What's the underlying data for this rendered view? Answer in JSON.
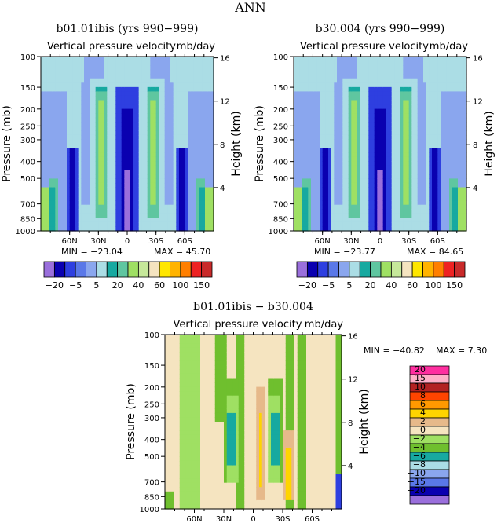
{
  "figure": {
    "title": "ANN"
  },
  "palettes": {
    "abs": [
      "#9a6fdc",
      "#0a00b0",
      "#2e3fe0",
      "#5a78e8",
      "#8aa6ee",
      "#abdde5",
      "#17a9a0",
      "#5fc6a0",
      "#9fe063",
      "#c6e89a",
      "#f5e4c0",
      "#ffe600",
      "#ffb300",
      "#ff7f00",
      "#ee2222",
      "#c92a2a",
      "#ff2fa0"
    ],
    "diff": [
      "#9a6fdc",
      "#0a00b0",
      "#2e3fe0",
      "#5a78e8",
      "#8aa6ee",
      "#abdde5",
      "#17a9a0",
      "#5fc6a0",
      "#9fe063",
      "#6fbf2e",
      "#f5e4c0",
      "#e6b98a",
      "#ffd400",
      "#ff9900",
      "#ff4400",
      "#b22222",
      "#ffb0c8",
      "#ff2fa0"
    ]
  },
  "chart_data": [
    {
      "type": "heatmap",
      "title": "b01.01ibis (yrs 990−999)",
      "subtitle": "Vertical pressure velocity",
      "units": "mb/day",
      "ylabel": "Pressure (mb)",
      "y2label": "Height (km)",
      "x_ticks": [
        "60N",
        "30N",
        "0",
        "30S",
        "60S"
      ],
      "x_tick_values": [
        60,
        30,
        0,
        -30,
        -60
      ],
      "x_range": [
        90,
        -90
      ],
      "y_ticks": [
        "100",
        "150",
        "200",
        "250",
        "300",
        "400",
        "500",
        "700",
        "850",
        "1000"
      ],
      "y_tick_values": [
        100,
        150,
        200,
        250,
        300,
        400,
        500,
        700,
        850,
        1000
      ],
      "y_range": [
        100,
        1000
      ],
      "y_log": true,
      "y2_ticks": [
        "4",
        "8",
        "12",
        "16"
      ],
      "y2_tick_values": [
        4,
        8,
        12,
        16
      ],
      "min_label": "MIN = −23.04",
      "max_label": "MAX = 45.70",
      "stats": {
        "min": -23.04,
        "max": 45.7
      },
      "colorbar_labels": [
        "−20",
        "−5",
        "5",
        "20",
        "40",
        "60",
        "100",
        "150"
      ],
      "levels": [
        -20,
        -15,
        -10,
        -5,
        0,
        5,
        10,
        15,
        20,
        30,
        40,
        50,
        60,
        80,
        100,
        120,
        150
      ]
    },
    {
      "type": "heatmap",
      "title": "b30.004 (yrs 990−999)",
      "subtitle": "Vertical pressure velocity",
      "units": "mb/day",
      "ylabel": "Pressure (mb)",
      "y2label": "Height (km)",
      "x_ticks": [
        "60N",
        "30N",
        "0",
        "30S",
        "60S"
      ],
      "x_tick_values": [
        60,
        30,
        0,
        -30,
        -60
      ],
      "x_range": [
        90,
        -90
      ],
      "y_ticks": [
        "100",
        "150",
        "200",
        "250",
        "300",
        "400",
        "500",
        "700",
        "850",
        "1000"
      ],
      "y_tick_values": [
        100,
        150,
        200,
        250,
        300,
        400,
        500,
        700,
        850,
        1000
      ],
      "y_range": [
        100,
        1000
      ],
      "y_log": true,
      "y2_ticks": [
        "4",
        "8",
        "12",
        "16"
      ],
      "y2_tick_values": [
        4,
        8,
        12,
        16
      ],
      "min_label": "MIN = −23.77",
      "max_label": "MAX = 84.65",
      "stats": {
        "min": -23.77,
        "max": 84.65
      },
      "colorbar_labels": [
        "−20",
        "−5",
        "5",
        "20",
        "40",
        "60",
        "100",
        "150"
      ],
      "levels": [
        -20,
        -15,
        -10,
        -5,
        0,
        5,
        10,
        15,
        20,
        30,
        40,
        50,
        60,
        80,
        100,
        120,
        150
      ]
    },
    {
      "type": "heatmap",
      "title": "b01.01ibis − b30.004",
      "subtitle": "Vertical pressure velocity",
      "units": "mb/day",
      "ylabel": "Pressure (mb)",
      "y2label": "Height (km)",
      "x_ticks": [
        "60N",
        "30N",
        "0",
        "30S",
        "60S"
      ],
      "x_tick_values": [
        60,
        30,
        0,
        -30,
        -60
      ],
      "x_range": [
        90,
        -90
      ],
      "y_ticks": [
        "100",
        "150",
        "200",
        "250",
        "300",
        "400",
        "500",
        "700",
        "850",
        "1000"
      ],
      "y_tick_values": [
        100,
        150,
        200,
        250,
        300,
        400,
        500,
        700,
        850,
        1000
      ],
      "y_range": [
        100,
        1000
      ],
      "y_log": true,
      "y2_ticks": [
        "4",
        "8",
        "12",
        "16"
      ],
      "y2_tick_values": [
        4,
        8,
        12,
        16
      ],
      "min_label": "MIN = −40.82",
      "max_label": "MAX =    7.30",
      "stats": {
        "min": -40.82,
        "max": 7.3
      },
      "colorbar_labels": [
        "20",
        "15",
        "10",
        "8",
        "6",
        "4",
        "2",
        "0",
        "−2",
        "−4",
        "−6",
        "−8",
        "−10",
        "−15",
        "−20"
      ],
      "levels": [
        -20,
        -15,
        -10,
        -8,
        -6,
        -4,
        -2,
        0,
        2,
        4,
        6,
        8,
        10,
        15,
        20
      ]
    }
  ]
}
